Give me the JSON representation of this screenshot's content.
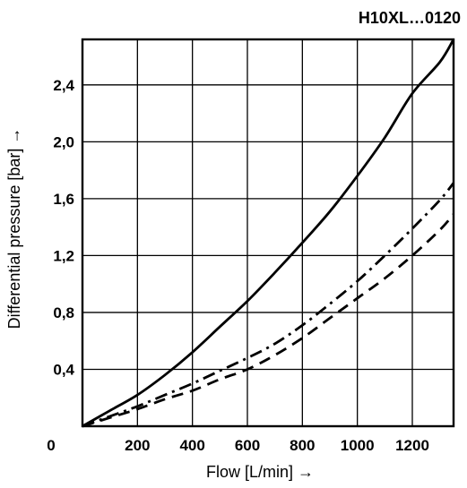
{
  "chart_data": {
    "type": "line",
    "title": "H10XL…0120",
    "xlabel": "Flow [L/min] →",
    "ylabel": "Differential pressure [bar] →",
    "xlim": [
      0,
      1350
    ],
    "ylim": [
      0,
      2.72
    ],
    "x_ticks": [
      200,
      400,
      600,
      800,
      1000,
      1200
    ],
    "x_tick_labels": [
      "200",
      "400",
      "600",
      "800",
      "1000",
      "1200"
    ],
    "y_ticks": [
      0.4,
      0.8,
      1.2,
      1.6,
      2.0,
      2.4
    ],
    "y_tick_labels": [
      "0,4",
      "0,8",
      "1,2",
      "1,6",
      "2,0",
      "2,4"
    ],
    "origin_label": "0",
    "grid": true,
    "series": [
      {
        "style": "solid",
        "x": [
          0,
          100,
          200,
          300,
          400,
          500,
          600,
          700,
          800,
          900,
          1000,
          1100,
          1200,
          1300,
          1350
        ],
        "y": [
          0,
          0.11,
          0.22,
          0.36,
          0.52,
          0.7,
          0.88,
          1.08,
          1.29,
          1.51,
          1.76,
          2.03,
          2.34,
          2.56,
          2.72
        ]
      },
      {
        "style": "dash-dot",
        "x": [
          0,
          100,
          200,
          300,
          400,
          500,
          600,
          700,
          800,
          900,
          1000,
          1100,
          1200,
          1300,
          1350
        ],
        "y": [
          0,
          0.07,
          0.14,
          0.22,
          0.3,
          0.39,
          0.48,
          0.58,
          0.71,
          0.86,
          1.02,
          1.2,
          1.39,
          1.59,
          1.71
        ]
      },
      {
        "style": "dashed",
        "x": [
          0,
          100,
          200,
          300,
          400,
          500,
          600,
          700,
          800,
          900,
          1000,
          1100,
          1200,
          1300,
          1350
        ],
        "y": [
          0,
          0.06,
          0.12,
          0.19,
          0.25,
          0.33,
          0.4,
          0.5,
          0.62,
          0.76,
          0.9,
          1.04,
          1.2,
          1.38,
          1.49
        ]
      }
    ]
  }
}
